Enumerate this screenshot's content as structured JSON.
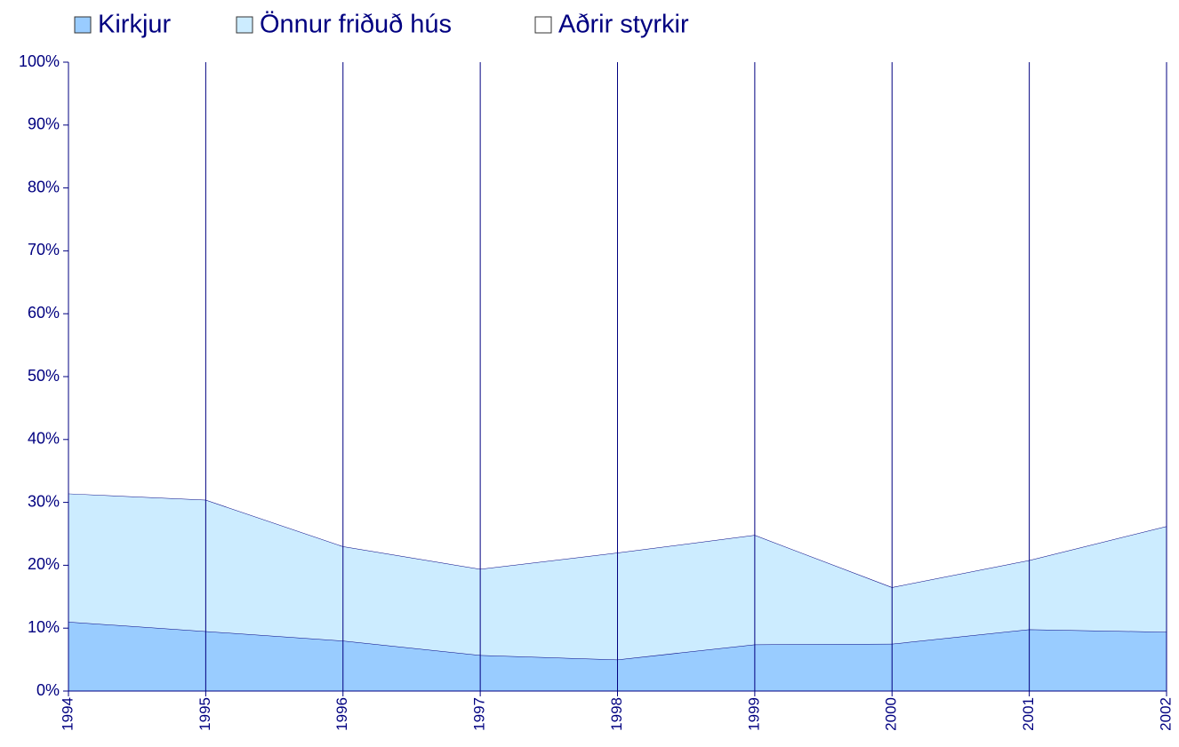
{
  "chart_data": {
    "type": "area",
    "stacked": true,
    "categories": [
      "1994",
      "1995",
      "1996",
      "1997",
      "1998",
      "1999",
      "2000",
      "2001",
      "2002"
    ],
    "series": [
      {
        "name": "Kirkjur",
        "color": "#99ccff",
        "values": [
          11,
          9.5,
          8,
          5.7,
          5,
          7.4,
          7.5,
          9.8,
          9.4
        ]
      },
      {
        "name": "Önnur friðuð hús",
        "color": "#ccecff",
        "values": [
          20.4,
          20.9,
          15,
          13.7,
          17,
          17.4,
          9,
          11,
          16.8
        ]
      },
      {
        "name": "Aðrir styrkir",
        "color": "#ffffff",
        "values": [
          68.6,
          69.6,
          77,
          80.6,
          78,
          75.2,
          83.5,
          79.2,
          73.8
        ]
      }
    ],
    "ylim": [
      0,
      100
    ],
    "yticks": [
      {
        "value": 0,
        "label": "0%"
      },
      {
        "value": 10,
        "label": "10%"
      },
      {
        "value": 20,
        "label": "20%"
      },
      {
        "value": 30,
        "label": "30%"
      },
      {
        "value": 40,
        "label": "40%"
      },
      {
        "value": 50,
        "label": "50%"
      },
      {
        "value": 60,
        "label": "60%"
      },
      {
        "value": 70,
        "label": "70%"
      },
      {
        "value": 80,
        "label": "80%"
      },
      {
        "value": 90,
        "label": "90%"
      },
      {
        "value": 100,
        "label": "100%"
      }
    ],
    "grid": true,
    "legend": "top"
  }
}
